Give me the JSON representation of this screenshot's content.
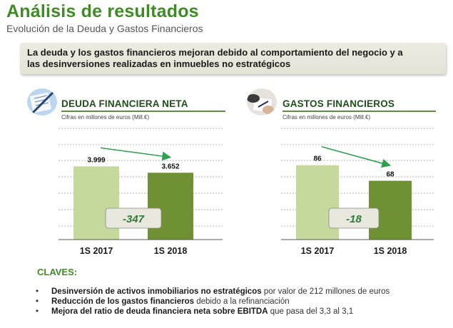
{
  "header": {
    "title": "Análisis de resultados",
    "subtitle": "Evolución de la Deuda y Gastos Financieros"
  },
  "headline": {
    "line1": "La deuda y los gastos financieros mejoran debido al comportamiento del negocio y a",
    "line2": "las desinversiones realizadas en inmuebles no estratégicos"
  },
  "colors": {
    "brand_green": "#3f8c24",
    "bar_light": "#c4d99b",
    "bar_dark": "#6f9133",
    "arrow_green": "#2ea050",
    "delta_box": "#e9e8df"
  },
  "panels": [
    {
      "icon": "document-pen-icon",
      "title": "DEUDA FINANCIERA  NETA",
      "units": "Cifras en millones de euros (Mill.€)"
    },
    {
      "icon": "signing-hands-icon",
      "title": "GASTOS FINANCIEROS",
      "units": "Cifras en millones de euros (Mill.€)"
    }
  ],
  "chart_data": [
    {
      "type": "bar",
      "title": "DEUDA FINANCIERA  NETA",
      "ylabel": "Cifras en millones de euros (Mill.€)",
      "categories": [
        "1S 2017",
        "1S 2018"
      ],
      "values": [
        3999,
        3652
      ],
      "value_labels": [
        "3.999",
        "3.652"
      ],
      "delta_label": "-347",
      "ylim": [
        0,
        6000
      ],
      "grid": true
    },
    {
      "type": "bar",
      "title": "GASTOS FINANCIEROS",
      "ylabel": "Cifras en millones de euros (Mill.€)",
      "categories": [
        "1S 2017",
        "1S 2018"
      ],
      "values": [
        86,
        68
      ],
      "value_labels": [
        "86",
        "68"
      ],
      "delta_label": "-18",
      "ylim": [
        0,
        127
      ],
      "grid": true
    }
  ],
  "claves": {
    "title": "CLAVES:",
    "items": [
      {
        "bold": "Desinversión de activos inmobiliarios  no estratégicos",
        "rest": " por valor de 212 millones de euros"
      },
      {
        "bold": "Reducción de los gastos financieros",
        "rest": " debido a la refinanciación"
      },
      {
        "bold": "Mejora del ratio de deuda financiera neta sobre EBITDA",
        "rest": " que pasa del 3,3 al 3,1"
      }
    ]
  }
}
